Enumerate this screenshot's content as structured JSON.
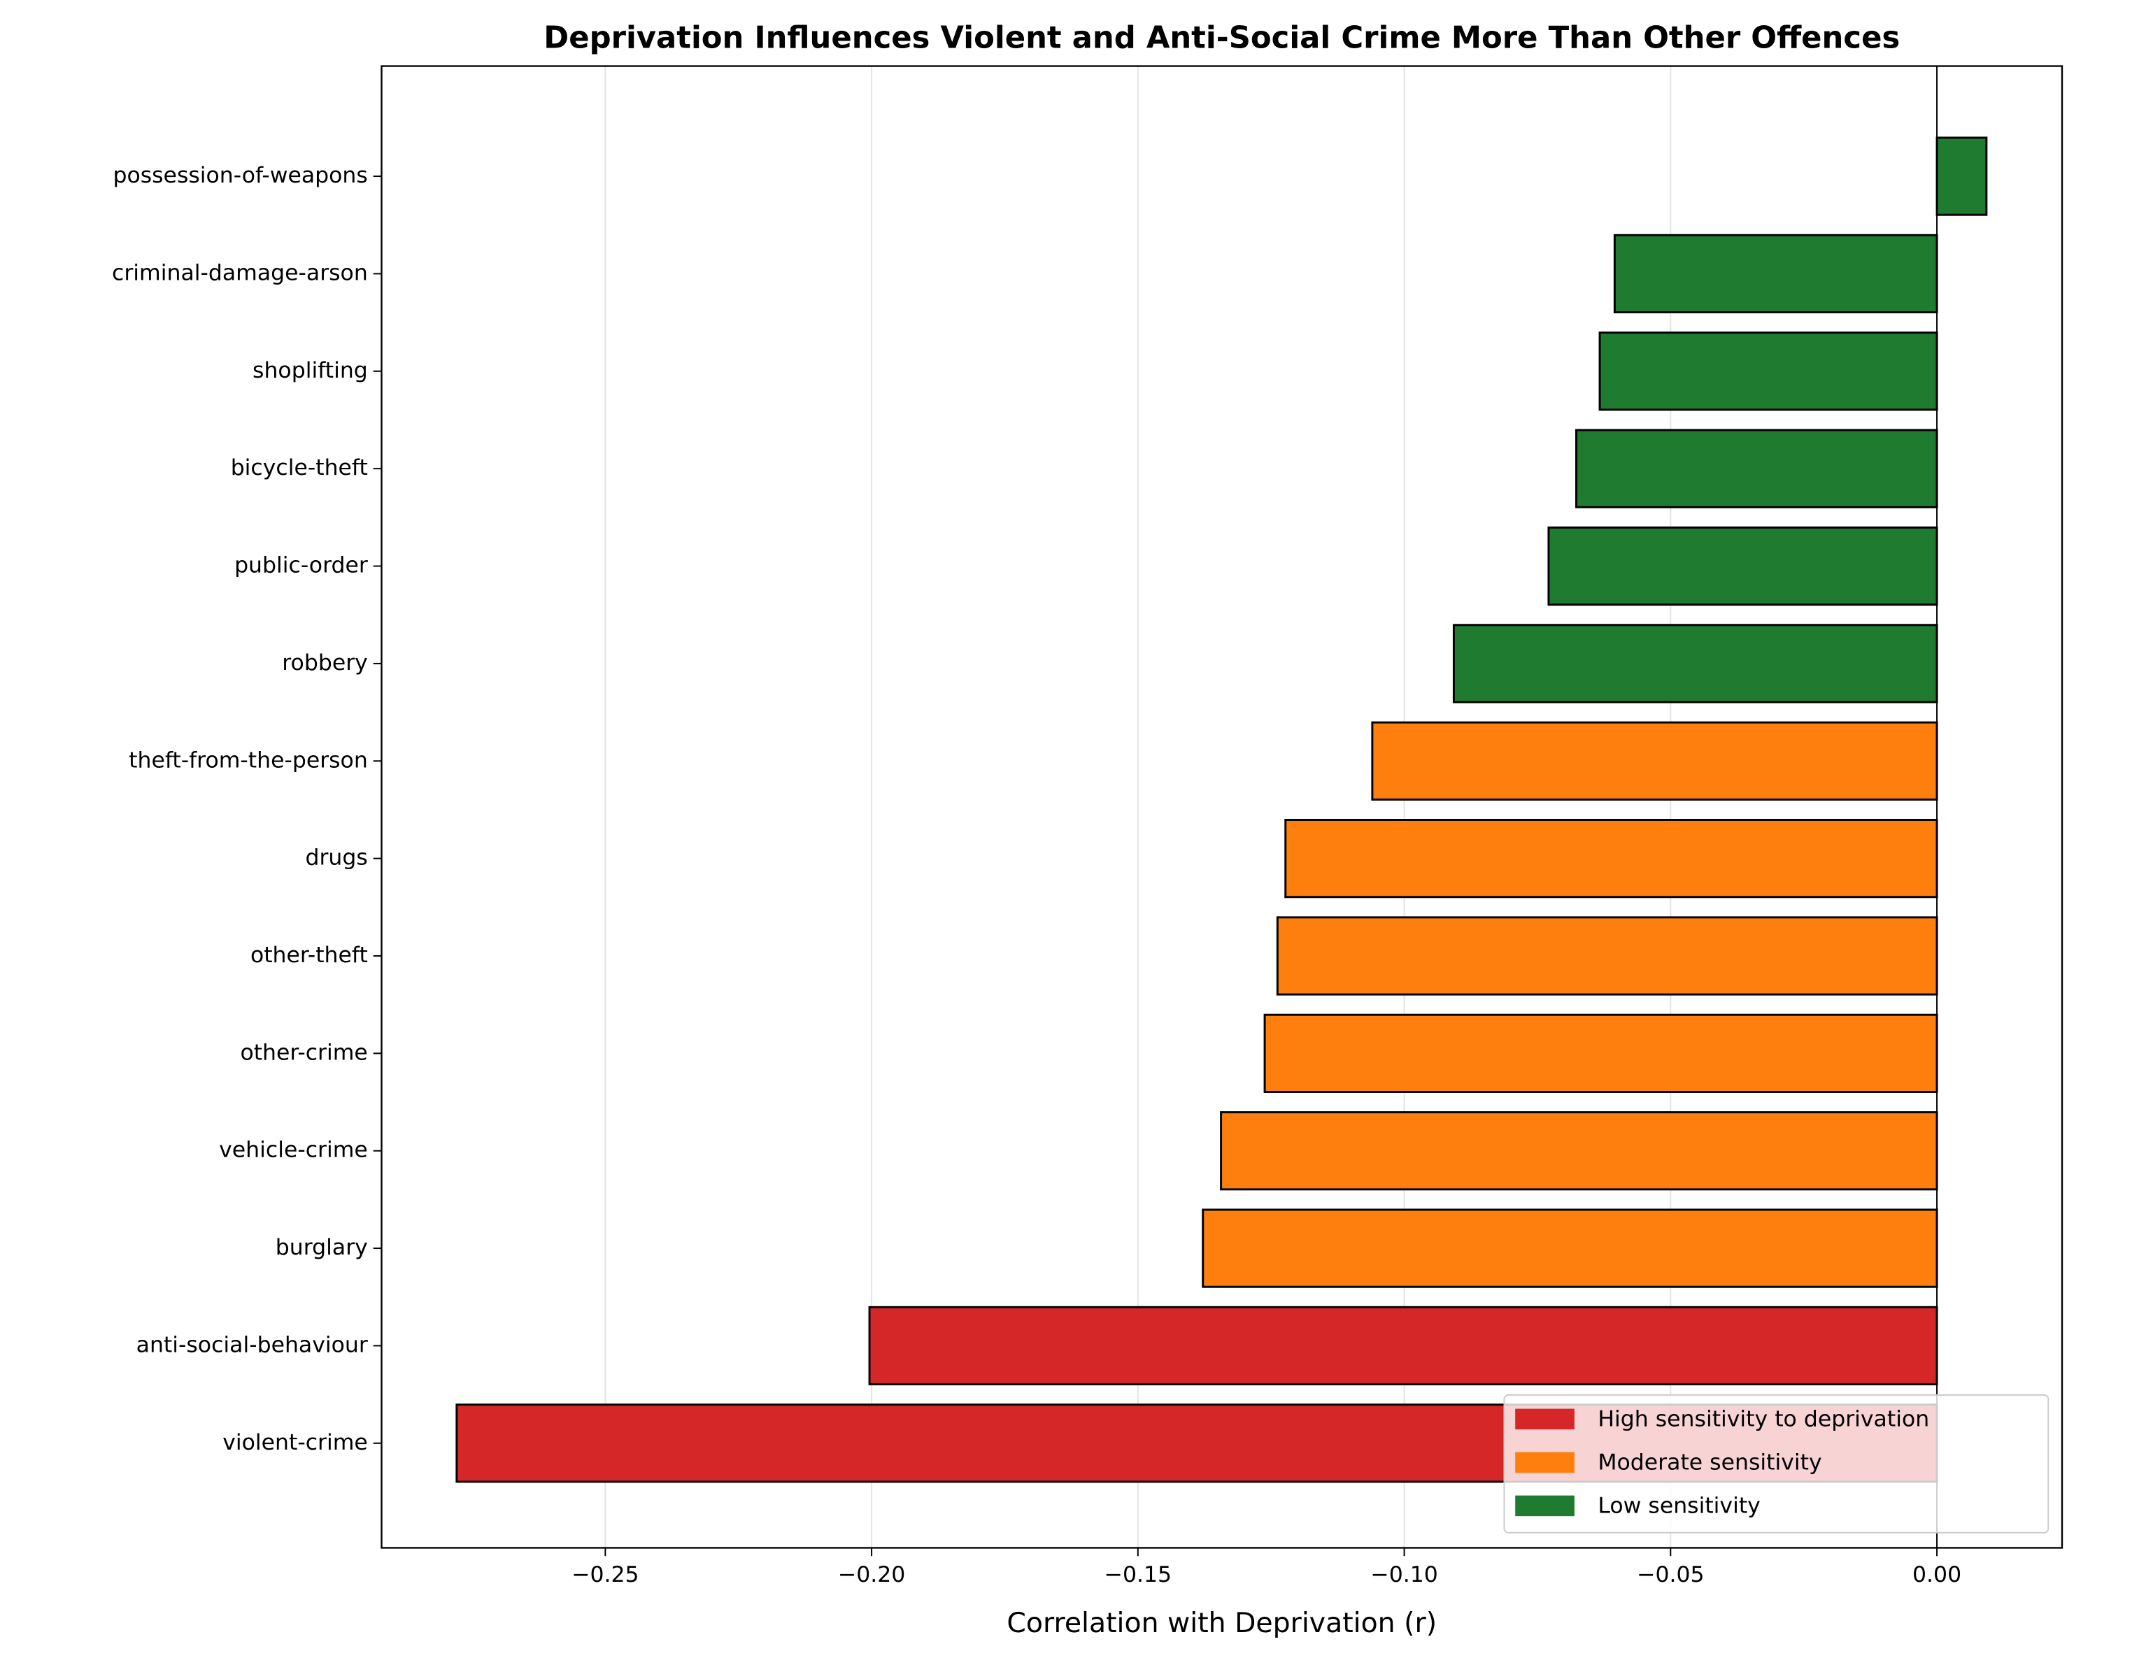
{
  "chart_data": {
    "type": "barh",
    "title": "Deprivation Influences Violent and Anti-Social Crime More Than Other Offences",
    "x_label": "Correlation with Deprivation (r)",
    "categories": [
      "possession-of-weapons",
      "criminal-damage-arson",
      "shoplifting",
      "bicycle-theft",
      "public-order",
      "robbery",
      "theft-from-the-person",
      "drugs",
      "other-theft",
      "other-crime",
      "vehicle-crime",
      "burglary",
      "anti-social-behaviour",
      "violent-crime"
    ],
    "series": [
      {
        "name": "High sensitivity to deprivation",
        "color": "#d62728",
        "values": [
          null,
          null,
          null,
          null,
          null,
          null,
          null,
          null,
          null,
          null,
          null,
          null,
          -0.2004,
          -0.2779
        ]
      },
      {
        "name": "Moderate sensitivity",
        "color": "#ff7f0e",
        "values": [
          null,
          null,
          null,
          null,
          null,
          null,
          -0.106,
          -0.1223,
          -0.1238,
          -0.1262,
          -0.1344,
          -0.1378,
          null,
          null
        ]
      },
      {
        "name": "Low sensitivity",
        "color": "#1e7b2f",
        "values": [
          0.0093,
          -0.0605,
          -0.0633,
          -0.0677,
          -0.0729,
          -0.0907,
          null,
          null,
          null,
          null,
          null,
          null,
          null,
          null
        ]
      }
    ],
    "xlim": [
      -0.292,
      0.0235
    ],
    "xticks": [
      {
        "value": -0.25,
        "label": "−0.25"
      },
      {
        "value": -0.2,
        "label": "−0.20"
      },
      {
        "value": -0.15,
        "label": "−0.15"
      },
      {
        "value": -0.1,
        "label": "−0.10"
      },
      {
        "value": -0.05,
        "label": "−0.05"
      },
      {
        "value": 0,
        "label": "0.00"
      }
    ],
    "grid": true,
    "legend_position": "lower right"
  }
}
